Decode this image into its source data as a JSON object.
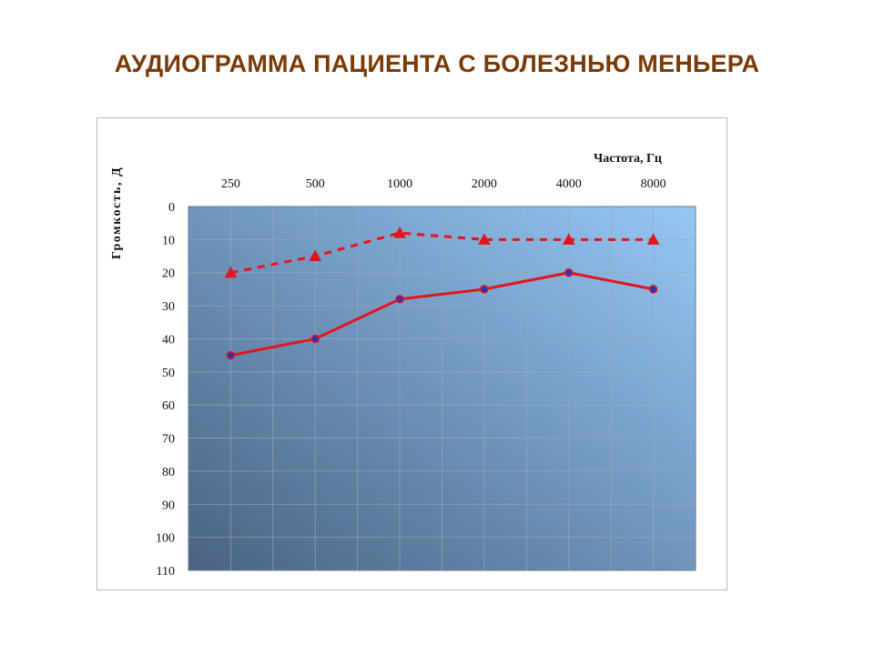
{
  "title": "АУДИОГРАММА ПАЦИЕНТА С БОЛЕЗНЬЮ МЕНЬЕРА",
  "chart_data": {
    "type": "line",
    "xlabel": "Частота, Гц",
    "ylabel": "Громкость, Д",
    "categories": [
      "250",
      "500",
      "1000",
      "2000",
      "4000",
      "8000"
    ],
    "y_ticks": [
      "0",
      "10",
      "20",
      "30",
      "40",
      "50",
      "60",
      "70",
      "80",
      "90",
      "100",
      "110"
    ],
    "ylim": [
      0,
      110
    ],
    "y_inverted": true,
    "x_axis_position": "top",
    "grid": true,
    "series": [
      {
        "values": [
          20,
          15,
          8,
          10,
          10,
          10
        ],
        "style": "dashed",
        "marker": "triangle",
        "color": "#e3141c"
      },
      {
        "values": [
          45,
          40,
          28,
          25,
          20,
          25
        ],
        "style": "solid",
        "marker": "circle",
        "color": "#e3141c",
        "marker_fill": "#2a36b8"
      }
    ],
    "plot_background": [
      "#4a6282",
      "#95c8f6"
    ]
  }
}
